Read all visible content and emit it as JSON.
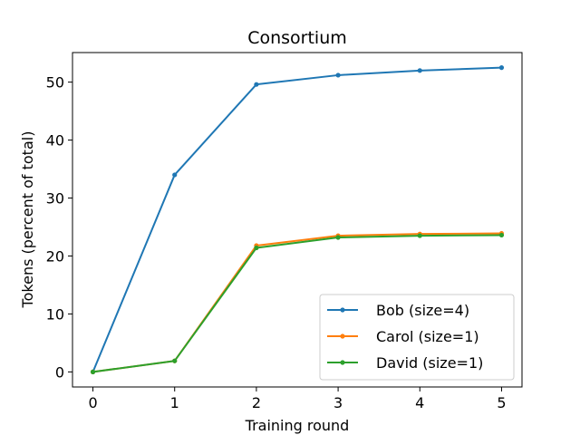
{
  "chart_data": {
    "type": "line",
    "title": "Consortium",
    "xlabel": "Training round",
    "ylabel": "Tokens (percent of total)",
    "x": [
      0,
      1,
      2,
      3,
      4,
      5
    ],
    "xlim": [
      -0.25,
      5.25
    ],
    "ylim": [
      -2.6,
      55.1
    ],
    "xticks": [
      0,
      1,
      2,
      3,
      4,
      5
    ],
    "yticks": [
      0,
      10,
      20,
      30,
      40,
      50
    ],
    "grid": false,
    "legend_position": "lower-right",
    "series": [
      {
        "name": "Bob (size=4)",
        "color": "#1f77b4",
        "marker": "dot",
        "values": [
          0,
          34.0,
          49.6,
          51.2,
          52.0,
          52.5
        ]
      },
      {
        "name": "Carol (size=1)",
        "color": "#ff7f0e",
        "marker": "dot",
        "values": [
          0,
          1.9,
          21.8,
          23.5,
          23.8,
          23.9
        ]
      },
      {
        "name": "David (size=1)",
        "color": "#2ca02c",
        "marker": "dot",
        "values": [
          0,
          1.9,
          21.4,
          23.2,
          23.5,
          23.6
        ]
      }
    ]
  }
}
